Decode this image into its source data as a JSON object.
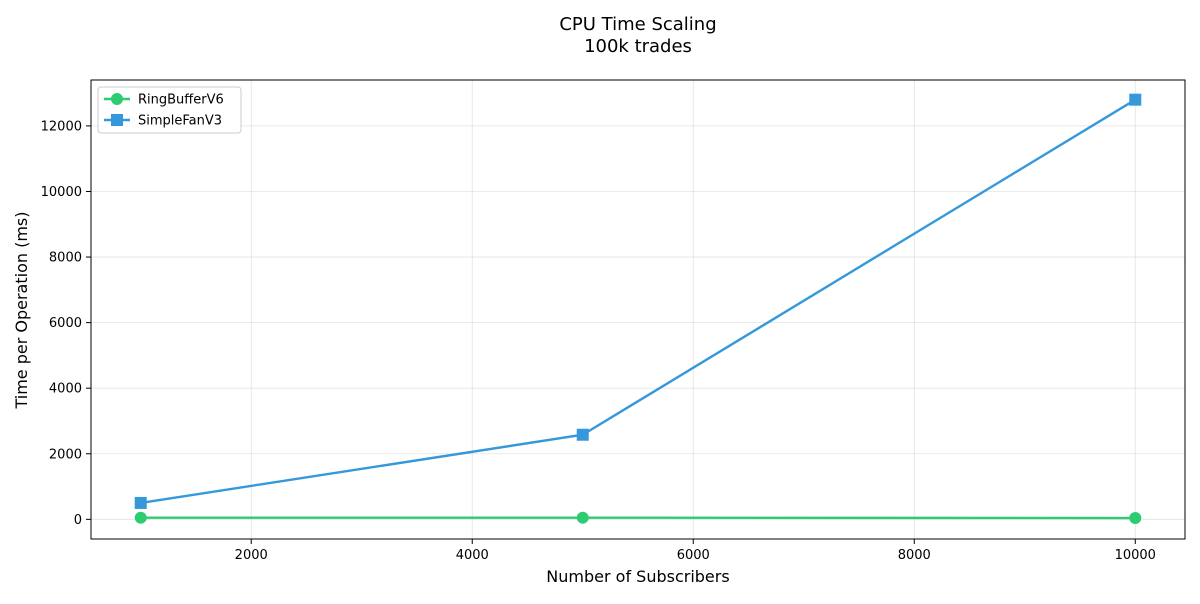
{
  "chart_data": {
    "type": "line",
    "title": "CPU Time Scaling",
    "subtitle": "100k trades",
    "xlabel": "Number of Subscribers",
    "ylabel": "Time per Operation (ms)",
    "xlim": [
      550,
      10450
    ],
    "ylim": [
      -600,
      13400
    ],
    "x_ticks": [
      2000,
      4000,
      6000,
      8000,
      10000
    ],
    "y_ticks": [
      0,
      2000,
      4000,
      6000,
      8000,
      10000,
      12000
    ],
    "grid": true,
    "legend_position": "top-left",
    "series": [
      {
        "name": "RingBufferV6",
        "color": "#2ecc71",
        "marker": "circle",
        "x": [
          1000,
          5000,
          10000
        ],
        "y": [
          50,
          50,
          40
        ]
      },
      {
        "name": "SimpleFanV3",
        "color": "#3498db",
        "marker": "square",
        "x": [
          1000,
          5000,
          10000
        ],
        "y": [
          500,
          2580,
          12800
        ]
      }
    ]
  }
}
